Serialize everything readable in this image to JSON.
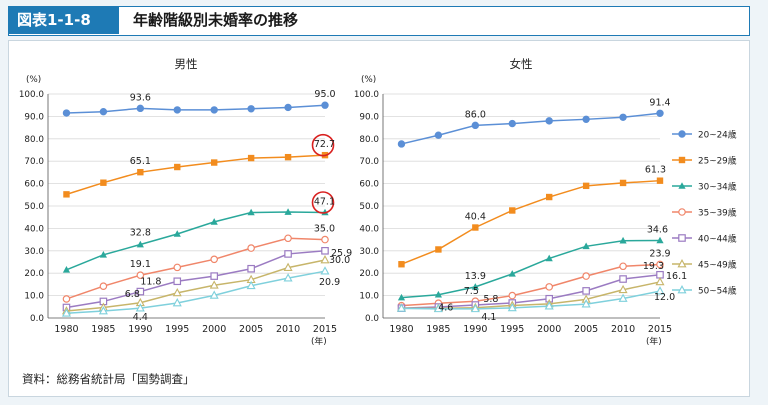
{
  "header": {
    "figure_no": "図表1-1-8",
    "title": "年齢階級別未婚率の推移"
  },
  "source": "資料：総務省統計局「国勢調査」",
  "legend": {
    "placement": "right"
  },
  "colors": {
    "20-24": "#5b8fd6",
    "25-29": "#f28c1e",
    "30-34": "#2aa89b",
    "35-39": "#f0866a",
    "40-44": "#9b7bc2",
    "45-49": "#c7b56a",
    "50-54": "#7fd0dc"
  },
  "chart_data": [
    {
      "type": "line",
      "title": "男性",
      "y_unit": "(%)",
      "x_unit": "(年)",
      "ylim": [
        0,
        100
      ],
      "yticks": [
        "0.0",
        "10.0",
        "20.0",
        "30.0",
        "40.0",
        "50.0",
        "60.0",
        "70.0",
        "80.0",
        "90.0",
        "100.0"
      ],
      "x": [
        "1980",
        "1985",
        "1990",
        "1995",
        "2000",
        "2005",
        "2010",
        "2015"
      ],
      "series": [
        {
          "name": "20~24歳",
          "key": "20-24",
          "marker": "circle",
          "values": [
            91.5,
            92.1,
            93.6,
            92.9,
            92.9,
            93.4,
            94.0,
            95.0
          ]
        },
        {
          "name": "25~29歳",
          "key": "25-29",
          "marker": "square",
          "values": [
            55.2,
            60.4,
            65.1,
            67.4,
            69.4,
            71.4,
            71.8,
            72.7
          ]
        },
        {
          "name": "30~34歳",
          "key": "30-34",
          "marker": "triangle",
          "values": [
            21.5,
            28.2,
            32.8,
            37.5,
            42.9,
            47.1,
            47.3,
            47.1
          ]
        },
        {
          "name": "35~39歳",
          "key": "35-39",
          "marker": "circle-open",
          "values": [
            8.5,
            14.2,
            19.1,
            22.6,
            26.2,
            31.2,
            35.6,
            35.0
          ]
        },
        {
          "name": "40~44歳",
          "key": "40-44",
          "marker": "square-open",
          "values": [
            4.7,
            7.4,
            11.8,
            16.4,
            18.7,
            22.0,
            28.6,
            30.0
          ]
        },
        {
          "name": "45~49歳",
          "key": "45-49",
          "marker": "triangle-open",
          "values": [
            3.1,
            4.7,
            6.8,
            11.2,
            14.6,
            17.1,
            22.5,
            25.9
          ]
        },
        {
          "name": "50~54歳",
          "key": "50-54",
          "marker": "triangle-open",
          "values": [
            2.1,
            3.1,
            4.4,
            6.7,
            10.1,
            14.4,
            17.8,
            20.9
          ]
        }
      ],
      "annotations": [
        {
          "series": 0,
          "index": 2,
          "text": "93.6"
        },
        {
          "series": 0,
          "index": 7,
          "text": "95.0"
        },
        {
          "series": 1,
          "index": 2,
          "text": "65.1"
        },
        {
          "series": 1,
          "index": 7,
          "text": "72.7",
          "circled": true
        },
        {
          "series": 2,
          "index": 2,
          "text": "32.8"
        },
        {
          "series": 2,
          "index": 7,
          "text": "47.1",
          "circled": true
        },
        {
          "series": 3,
          "index": 2,
          "text": "19.1"
        },
        {
          "series": 3,
          "index": 7,
          "text": "35.0"
        },
        {
          "series": 4,
          "index": 2,
          "text": "11.8"
        },
        {
          "series": 4,
          "index": 7,
          "text": "30.0"
        },
        {
          "series": 5,
          "index": 2,
          "text": "6.8"
        },
        {
          "series": 5,
          "index": 7,
          "text": "25.9"
        },
        {
          "series": 6,
          "index": 2,
          "text": "4.4"
        },
        {
          "series": 6,
          "index": 7,
          "text": "20.9"
        }
      ]
    },
    {
      "type": "line",
      "title": "女性",
      "y_unit": "(%)",
      "x_unit": "(年)",
      "ylim": [
        0,
        100
      ],
      "yticks": [
        "0.0",
        "10.0",
        "20.0",
        "30.0",
        "40.0",
        "50.0",
        "60.0",
        "70.0",
        "80.0",
        "90.0",
        "100.0"
      ],
      "x": [
        "1980",
        "1985",
        "1990",
        "1995",
        "2000",
        "2005",
        "2010",
        "2015"
      ],
      "series": [
        {
          "name": "20~24歳",
          "key": "20-24",
          "marker": "circle",
          "values": [
            77.7,
            81.6,
            86.0,
            86.8,
            88.0,
            88.7,
            89.6,
            91.4
          ]
        },
        {
          "name": "25~29歳",
          "key": "25-29",
          "marker": "square",
          "values": [
            24.0,
            30.6,
            40.4,
            48.0,
            54.0,
            59.0,
            60.3,
            61.3
          ]
        },
        {
          "name": "30~34歳",
          "key": "30-34",
          "marker": "triangle",
          "values": [
            9.1,
            10.4,
            13.9,
            19.7,
            26.6,
            32.0,
            34.5,
            34.6
          ]
        },
        {
          "name": "35~39歳",
          "key": "35-39",
          "marker": "circle-open",
          "values": [
            5.5,
            6.6,
            7.5,
            10.0,
            13.9,
            18.7,
            23.1,
            23.9
          ]
        },
        {
          "name": "40~44歳",
          "key": "40-44",
          "marker": "square-open",
          "values": [
            4.4,
            4.9,
            5.8,
            6.7,
            8.6,
            12.1,
            17.4,
            19.3
          ]
        },
        {
          "name": "45~49歳",
          "key": "45-49",
          "marker": "triangle-open",
          "values": [
            4.4,
            4.3,
            4.6,
            5.6,
            6.3,
            8.3,
            12.6,
            16.1
          ]
        },
        {
          "name": "50~54歳",
          "key": "50-54",
          "marker": "triangle-open",
          "values": [
            4.3,
            4.1,
            4.1,
            4.5,
            5.3,
            6.2,
            8.7,
            12.0
          ]
        }
      ],
      "annotations": [
        {
          "series": 0,
          "index": 2,
          "text": "86.0"
        },
        {
          "series": 0,
          "index": 7,
          "text": "91.4"
        },
        {
          "series": 1,
          "index": 2,
          "text": "40.4"
        },
        {
          "series": 1,
          "index": 7,
          "text": "61.3"
        },
        {
          "series": 2,
          "index": 2,
          "text": "13.9"
        },
        {
          "series": 2,
          "index": 7,
          "text": "34.6"
        },
        {
          "series": 3,
          "index": 2,
          "text": "7.5"
        },
        {
          "series": 3,
          "index": 7,
          "text": "23.9"
        },
        {
          "series": 4,
          "index": 2,
          "text": "5.8"
        },
        {
          "series": 4,
          "index": 7,
          "text": "19.3"
        },
        {
          "series": 5,
          "index": 2,
          "text": "4.6"
        },
        {
          "series": 5,
          "index": 7,
          "text": "16.1"
        },
        {
          "series": 6,
          "index": 2,
          "text": "4.1"
        },
        {
          "series": 6,
          "index": 7,
          "text": "12.0"
        }
      ]
    }
  ]
}
